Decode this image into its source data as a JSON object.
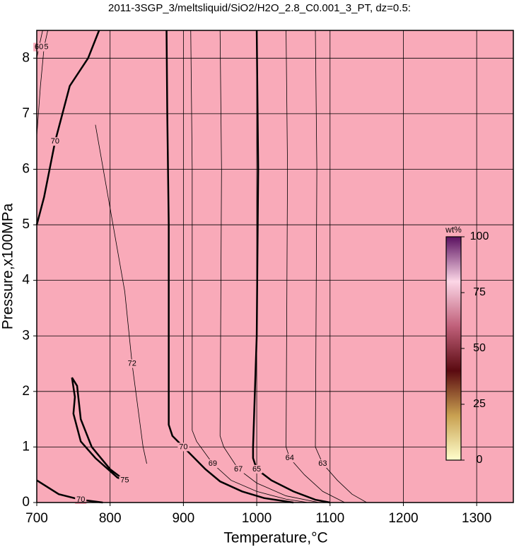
{
  "chart_data": {
    "type": "contour",
    "title": "2011-3SGP_3/meltsliquid/SiO2/H2O_2.8_C0.001_3_PT, dz=0.5:",
    "xlabel": "Temperature,°C",
    "ylabel": "Pressure,x100MPa",
    "xlim": [
      700,
      1350
    ],
    "ylim": [
      0,
      8.5
    ],
    "xticks": [
      700,
      800,
      900,
      1000,
      1100,
      1200,
      1300
    ],
    "yticks": [
      0,
      1,
      2,
      3,
      4,
      5,
      6,
      7,
      8
    ],
    "grid": true,
    "fill_color": "#f9aab9",
    "contours": [
      {
        "level": 70,
        "weight": "bold",
        "x": [
          877,
          878,
          880,
          880,
          885,
          900,
          930,
          950,
          980,
          1010,
          1050
        ],
        "y": [
          8.5,
          7,
          5,
          1.4,
          1.2,
          1.0,
          0.6,
          0.38,
          0.2,
          0.08,
          0
        ]
      },
      {
        "level": 65,
        "weight": "bold",
        "x": [
          1000,
          1002,
          1000,
          995,
          995,
          1000,
          1020,
          1050,
          1080,
          1100
        ],
        "y": [
          8.5,
          6,
          3,
          1,
          0.8,
          0.6,
          0.4,
          0.2,
          0.05,
          0
        ]
      },
      {
        "level": 70,
        "weight": "bold",
        "x": [
          785,
          770,
          745,
          725,
          710,
          700
        ],
        "y": [
          8.5,
          8,
          7.5,
          6.5,
          5.5,
          5.0
        ]
      },
      {
        "level": 75,
        "weight": "bold",
        "x": [
          748,
          752,
          750,
          760,
          780,
          810,
          820,
          800,
          775,
          760,
          755,
          748
        ],
        "y": [
          2.25,
          1.9,
          1.6,
          1.1,
          0.8,
          0.45,
          0.4,
          0.6,
          1.0,
          1.5,
          2.1,
          2.25
        ]
      },
      {
        "level": 70,
        "weight": "bold",
        "x": [
          700,
          730,
          760,
          790
        ],
        "y": [
          0.4,
          0.15,
          0.05,
          0
        ]
      },
      {
        "level": 65,
        "weight": "thin",
        "x": [
          700,
          705,
          710,
          715
        ],
        "y": [
          6.6,
          7.5,
          8.2,
          8.5
        ]
      },
      {
        "level": 60,
        "weight": "thin",
        "x": [
          700,
          703,
          708
        ],
        "y": [
          8.0,
          8.2,
          8.5
        ]
      },
      {
        "level": 69,
        "weight": "thin",
        "x": [
          910,
          912,
          912,
          918,
          940,
          965,
          1000,
          1040,
          1070
        ],
        "y": [
          8.5,
          6,
          1.3,
          1.1,
          0.7,
          0.4,
          0.2,
          0.06,
          0
        ]
      },
      {
        "level": 67,
        "weight": "thin",
        "x": [
          950,
          952,
          950,
          955,
          975,
          1000,
          1040,
          1085
        ],
        "y": [
          8.5,
          6,
          1.2,
          1.0,
          0.6,
          0.35,
          0.12,
          0
        ]
      },
      {
        "level": 64,
        "weight": "thin",
        "x": [
          1040,
          1042,
          1040,
          1045,
          1065,
          1090,
          1120
        ],
        "y": [
          8.5,
          6,
          1.0,
          0.8,
          0.5,
          0.2,
          0
        ]
      },
      {
        "level": 63,
        "weight": "thin",
        "x": [
          1080,
          1082,
          1080,
          1090,
          1110,
          1130,
          1150
        ],
        "y": [
          8.5,
          6,
          1.0,
          0.7,
          0.4,
          0.15,
          0
        ]
      },
      {
        "level": 72,
        "weight": "thin",
        "x": [
          780,
          800,
          820,
          830,
          840,
          845,
          850
        ],
        "y": [
          6.8,
          5.3,
          3.8,
          2.5,
          1.5,
          1.0,
          0.7
        ]
      }
    ],
    "colorbar": {
      "label": "wt%",
      "lim": [
        0,
        100
      ],
      "ticks": [
        0,
        25,
        50,
        75,
        100
      ],
      "colors": [
        "#ffffcc",
        "#c8a050",
        "#5a0a10",
        "#c0607a",
        "#fcd6e6",
        "#5a1060"
      ]
    }
  }
}
